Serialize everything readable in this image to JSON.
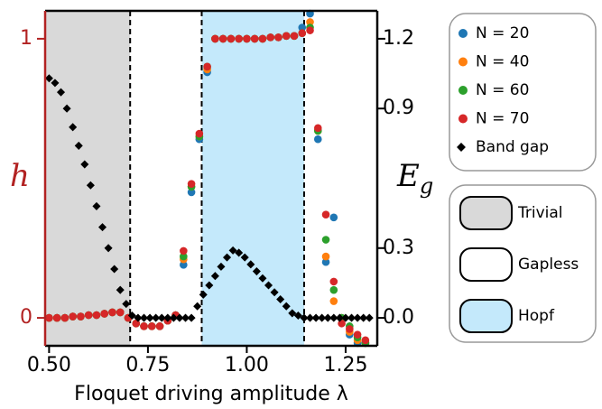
{
  "chart_data": {
    "type": "scatter",
    "x_label": "Floquet driving amplitude λ",
    "y_label": "h",
    "y_color": "#b22222",
    "y2_label": {
      "base": "E",
      "sub": "g"
    },
    "xlim": [
      0.49,
      1.33
    ],
    "xticks": [
      {
        "value": 0.5,
        "label": "0.50"
      },
      {
        "value": 0.75,
        "label": "0.75"
      },
      {
        "value": 1,
        "label": "1.00"
      },
      {
        "value": 1.25,
        "label": "1.25"
      }
    ],
    "ylim": [
      -0.1,
      1.1
    ],
    "yticks": [
      0,
      1
    ],
    "y2lim": [
      -0.12,
      1.32
    ],
    "y2ticks": [
      {
        "value": 0,
        "label": "0.0"
      },
      0.3,
      0.9,
      1.2
    ],
    "regions": [
      {
        "name": "Trivial",
        "color": "#d9d9d9",
        "range": [
          0.49,
          0.705
        ]
      },
      {
        "name": "Gapless",
        "color": "#ffffff",
        "range": [
          0.705,
          0.886
        ]
      },
      {
        "name": "Hopf",
        "color": "#c4e9fb",
        "range": [
          0.886,
          1.145
        ]
      }
    ],
    "x": [
      0.5,
      0.52,
      0.54,
      0.56,
      0.58,
      0.6,
      0.62,
      0.64,
      0.66,
      0.68,
      0.7,
      0.72,
      0.74,
      0.76,
      0.78,
      0.8,
      0.82,
      0.84,
      0.86,
      0.88,
      0.9,
      0.92,
      0.94,
      0.96,
      0.98,
      1,
      1.02,
      1.04,
      1.06,
      1.08,
      1.1,
      1.12,
      1.14,
      1.16,
      1.18,
      1.2,
      1.22,
      1.24,
      1.26,
      1.28,
      1.3
    ],
    "series": [
      {
        "name": "N = 20",
        "color": "#1f77b4",
        "values": [
          0,
          0,
          0,
          0.005,
          0.005,
          0.01,
          0.01,
          0.015,
          0.02,
          0.02,
          0,
          -0.02,
          -0.03,
          -0.03,
          -0.03,
          -0.01,
          0.01,
          0.19,
          0.45,
          0.64,
          0.88,
          1,
          1,
          1,
          1,
          1,
          1,
          1,
          1.005,
          1.005,
          1.01,
          1.01,
          1.04,
          1.09,
          0.64,
          0.2,
          0.36,
          0,
          -0.06,
          -0.09,
          -0.09
        ]
      },
      {
        "name": "N = 40",
        "color": "#ff7f0e",
        "values": [
          0,
          0,
          0,
          0.005,
          0.005,
          0.01,
          0.01,
          0.015,
          0.02,
          0.02,
          0,
          -0.02,
          -0.03,
          -0.03,
          -0.03,
          -0.01,
          0.01,
          0.21,
          0.47,
          0.65,
          0.89,
          1,
          1,
          1,
          1,
          1,
          1,
          1,
          1.005,
          1.005,
          1.01,
          1.01,
          1.02,
          1.06,
          0.67,
          0.22,
          0.06,
          0,
          -0.05,
          -0.08,
          -0.09
        ]
      },
      {
        "name": "N = 60",
        "color": "#2ca02c",
        "values": [
          0,
          0,
          0,
          0.005,
          0.005,
          0.01,
          0.01,
          0.015,
          0.02,
          0.02,
          0,
          -0.02,
          -0.03,
          -0.03,
          -0.03,
          -0.01,
          0.01,
          0.22,
          0.47,
          0.65,
          0.9,
          1,
          1,
          1,
          1,
          1,
          1,
          1,
          1.005,
          1.005,
          1.01,
          1.01,
          1.02,
          1.04,
          0.67,
          0.28,
          0.1,
          0,
          -0.03,
          -0.07,
          -0.09
        ]
      },
      {
        "name": "N = 70",
        "color": "#d62728",
        "values": [
          0,
          0,
          0,
          0.005,
          0.005,
          0.01,
          0.01,
          0.015,
          0.02,
          0.02,
          0,
          -0.02,
          -0.03,
          -0.03,
          -0.03,
          -0.01,
          0.01,
          0.24,
          0.48,
          0.66,
          0.9,
          1,
          1,
          1,
          1,
          1,
          1,
          1,
          1.005,
          1.005,
          1.01,
          1.01,
          1.02,
          1.03,
          0.68,
          0.37,
          0.13,
          -0.02,
          -0.04,
          -0.06,
          -0.08
        ]
      },
      {
        "name": "Band gap",
        "color": "#000000",
        "marker": "diamond",
        "axis": "y2",
        "x": [
          0.5,
          0.515,
          0.53,
          0.545,
          0.56,
          0.575,
          0.59,
          0.605,
          0.62,
          0.635,
          0.65,
          0.665,
          0.68,
          0.695,
          0.71,
          0.725,
          0.74,
          0.755,
          0.77,
          0.785,
          0.8,
          0.815,
          0.83,
          0.845,
          0.86,
          0.875,
          0.89,
          0.905,
          0.92,
          0.935,
          0.95,
          0.965,
          0.98,
          0.995,
          1.01,
          1.025,
          1.04,
          1.055,
          1.07,
          1.085,
          1.1,
          1.115,
          1.13,
          1.145,
          1.16,
          1.175,
          1.19,
          1.205,
          1.22,
          1.235,
          1.25,
          1.265,
          1.28,
          1.295,
          1.31
        ],
        "values": [
          1.03,
          1.01,
          0.97,
          0.9,
          0.82,
          0.74,
          0.66,
          0.57,
          0.48,
          0.39,
          0.3,
          0.21,
          0.12,
          0.06,
          0.01,
          0,
          0,
          0,
          0,
          0,
          0,
          0,
          0,
          0,
          0,
          0.05,
          0.1,
          0.14,
          0.18,
          0.22,
          0.26,
          0.29,
          0.28,
          0.26,
          0.23,
          0.2,
          0.17,
          0.14,
          0.11,
          0.08,
          0.05,
          0.02,
          0.01,
          0,
          0,
          0,
          0,
          0,
          0,
          0,
          0,
          0,
          0,
          0,
          0
        ]
      }
    ]
  }
}
